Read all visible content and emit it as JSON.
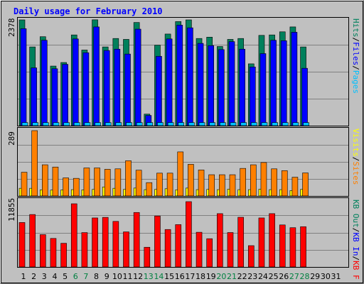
{
  "colors": {
    "background": "#c0c0c0",
    "title": "#0000ff",
    "hits": "#00805c",
    "files": "#0000ff",
    "pages": "#00c0ff",
    "visits": "#ffff00",
    "sites": "#ff8000",
    "kb_in": "#ff0000",
    "weekend_day": "#008040",
    "weekday": "#000000"
  },
  "chart_data": [
    {
      "type": "bar",
      "title": "Daily usage for February 2010",
      "x": [
        "1",
        "2",
        "3",
        "4",
        "5",
        "6",
        "7",
        "8",
        "9",
        "10",
        "11",
        "12",
        "13",
        "14",
        "15",
        "16",
        "17",
        "18",
        "19",
        "20",
        "21",
        "22",
        "23",
        "24",
        "25",
        "26",
        "27",
        "28",
        "29",
        "30",
        "31"
      ],
      "weekend_days": [
        "6",
        "7",
        "13",
        "14",
        "20",
        "21",
        "27",
        "28"
      ],
      "ylim": [
        0,
        2378
      ],
      "max_label": "2378",
      "axis_legend": [
        "Pages",
        "Files",
        "Hits"
      ],
      "series": [
        {
          "name": "Hits",
          "values": [
            2378,
            1770,
            2000,
            1340,
            1420,
            2040,
            1700,
            2380,
            1770,
            1960,
            1940,
            2320,
            260,
            1810,
            2060,
            2340,
            2378,
            1960,
            1990,
            1780,
            1940,
            1960,
            1390,
            2030,
            2040,
            2110,
            2220,
            1770,
            0,
            0,
            0
          ]
        },
        {
          "name": "Files",
          "values": [
            2180,
            1300,
            1920,
            1280,
            1380,
            1950,
            1640,
            2220,
            1690,
            1720,
            1610,
            2170,
            230,
            1560,
            1950,
            2260,
            2200,
            1850,
            1800,
            1710,
            1890,
            1720,
            1320,
            1620,
            1920,
            1910,
            2100,
            1290,
            0,
            0,
            0
          ]
        },
        {
          "name": "Pages",
          "values": [
            70,
            70,
            70,
            70,
            70,
            70,
            70,
            70,
            70,
            70,
            70,
            70,
            70,
            70,
            70,
            70,
            70,
            70,
            70,
            70,
            70,
            70,
            70,
            70,
            70,
            70,
            70,
            70,
            0,
            0,
            0
          ]
        }
      ]
    },
    {
      "type": "bar",
      "ylim": [
        0,
        289
      ],
      "max_label": "289",
      "axis_legend": [
        "Sites",
        "Visits"
      ],
      "series": [
        {
          "name": "Visits",
          "values": [
            34,
            34,
            27,
            26,
            27,
            28,
            27,
            29,
            40,
            34,
            29,
            35,
            28,
            29,
            32,
            27,
            35,
            28,
            29,
            28,
            30,
            28,
            28,
            30,
            28,
            28,
            24,
            29,
            0,
            0,
            0
          ]
        },
        {
          "name": "Sites",
          "values": [
            105,
            289,
            138,
            128,
            80,
            78,
            124,
            124,
            118,
            120,
            156,
            114,
            59,
            101,
            101,
            195,
            140,
            115,
            94,
            94,
            94,
            122,
            138,
            148,
            120,
            112,
            83,
            102,
            0,
            0,
            0
          ]
        }
      ]
    },
    {
      "type": "bar",
      "ylim": [
        0,
        11855
      ],
      "max_label": "11855",
      "axis_legend": [
        "KB F",
        "KB In",
        "KB Out"
      ],
      "series": [
        {
          "name": "KB In",
          "values": [
            8070,
            9520,
            5870,
            5180,
            4300,
            11470,
            6240,
            8900,
            9000,
            8270,
            6370,
            9890,
            3580,
            9250,
            6800,
            7690,
            11855,
            6300,
            5130,
            9680,
            6250,
            9020,
            3870,
            8900,
            9680,
            7630,
            7130,
            7310,
            0,
            0,
            0
          ]
        }
      ]
    }
  ]
}
